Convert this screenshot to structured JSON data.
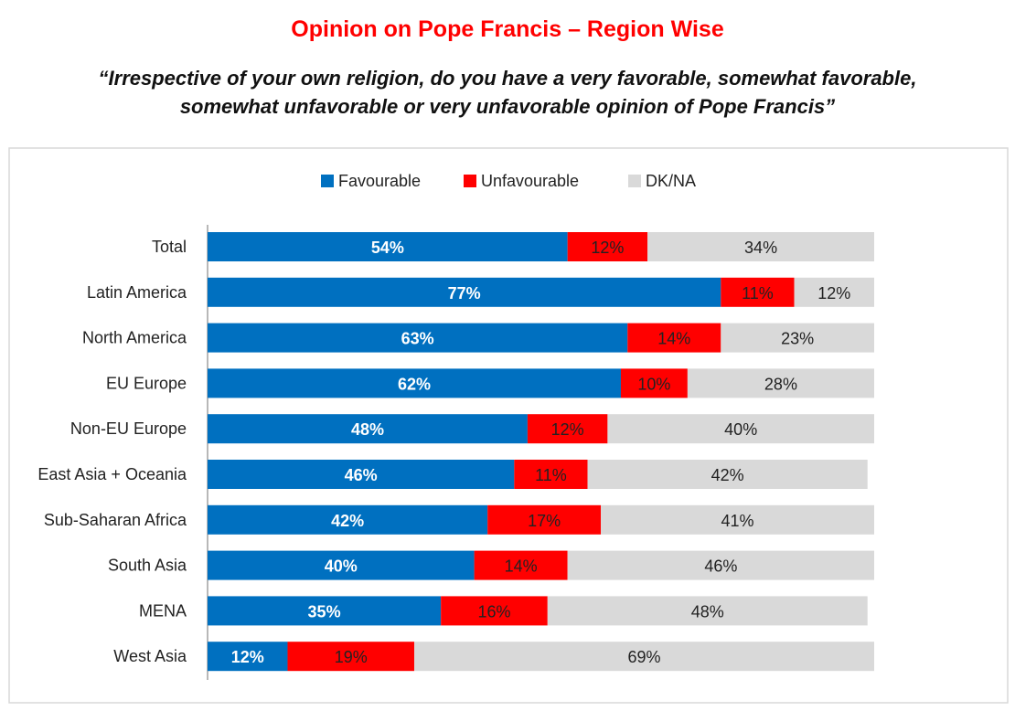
{
  "chart_data": {
    "type": "bar",
    "orientation": "horizontal",
    "stacked": true,
    "title": "Opinion on Pope Francis – Region Wise",
    "subtitle_lines": [
      "“Irrespective of your own religion, do you have a very favorable, somewhat favorable,",
      "somewhat unfavorable or very unfavorable opinion of Pope Francis”"
    ],
    "xlim": [
      0,
      100
    ],
    "grid": false,
    "legend_position": "top-center",
    "categories": [
      "Total",
      "Latin America",
      "North America",
      "EU Europe",
      "Non-EU Europe",
      "East Asia + Oceania",
      "Sub-Saharan Africa",
      "South Asia",
      "MENA",
      "West Asia"
    ],
    "series": [
      {
        "name": "Favourable",
        "color": "#0070c0",
        "label_color": "#ffffff",
        "values": [
          54,
          77,
          63,
          62,
          48,
          46,
          42,
          40,
          35,
          12
        ]
      },
      {
        "name": "Unfavourable",
        "color": "#ff0000",
        "label_color": "#222222",
        "values": [
          12,
          11,
          14,
          10,
          12,
          11,
          17,
          14,
          16,
          19
        ]
      },
      {
        "name": "DK/NA",
        "color": "#d9d9d9",
        "label_color": "#222222",
        "values": [
          34,
          12,
          23,
          28,
          40,
          42,
          41,
          46,
          48,
          69
        ]
      }
    ]
  }
}
